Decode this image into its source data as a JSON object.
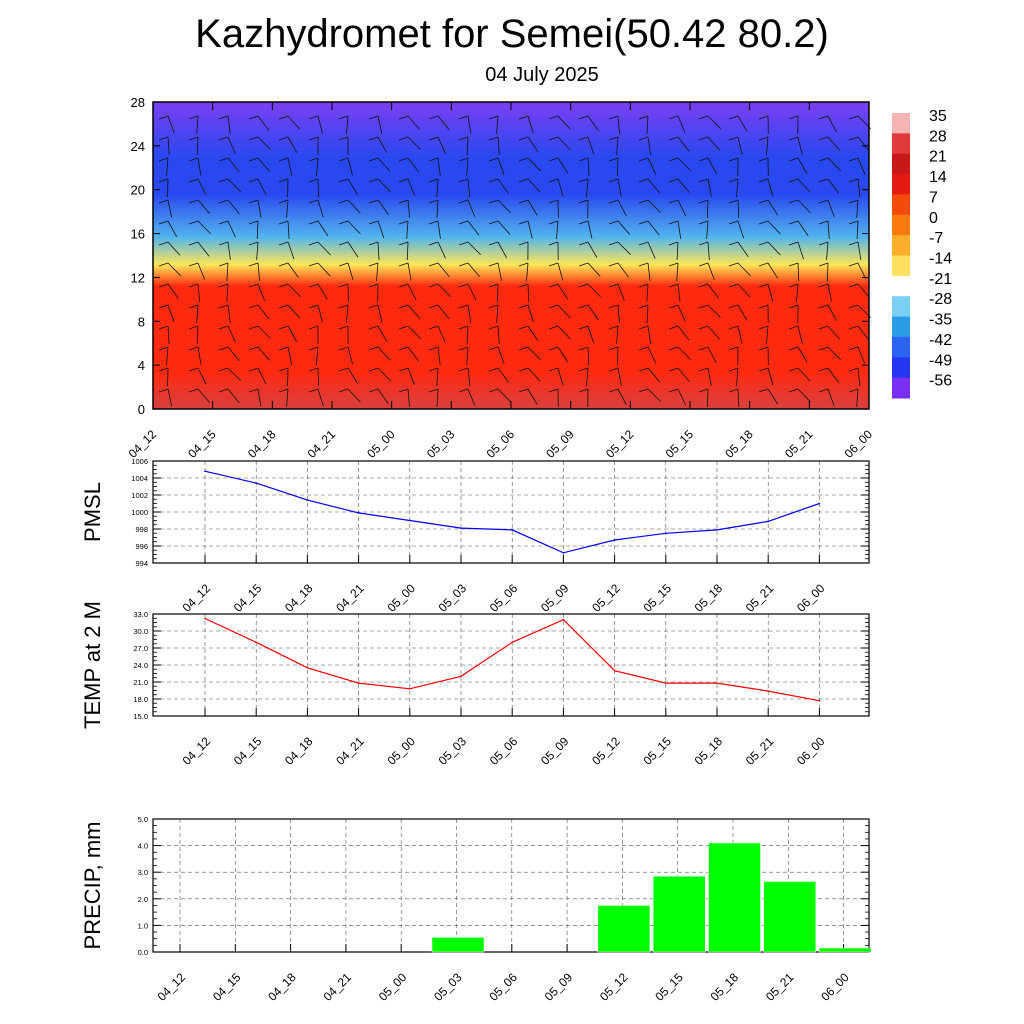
{
  "title": "Kazhydromet for Semei(50.42 80.2)",
  "subtitle": "04 July 2025",
  "colorbar": {
    "labels": [
      "35",
      "28",
      "21",
      "14",
      "7",
      "0",
      "-7",
      "-14",
      "-21",
      "-28",
      "-35",
      "-42",
      "-49",
      "-56"
    ],
    "colors": [
      "#f4b4b4",
      "#e03a3a",
      "#c81818",
      "#e21a10",
      "#f24a08",
      "#fa7a10",
      "#fcae2a",
      "#fee060",
      "#ffffff",
      "#7ad0f4",
      "#2a9ce8",
      "#2a64f0",
      "#2436f0",
      "#7a2ef4"
    ]
  },
  "chart_data": [
    {
      "type": "heatmap",
      "title": "",
      "x": [
        "04_12",
        "04_15",
        "04_18",
        "04_21",
        "05_00",
        "05_03",
        "05_06",
        "05_09",
        "05_12",
        "05_15",
        "05_18",
        "05_21",
        "06_00"
      ],
      "ylim": [
        0,
        28
      ],
      "yticks": [
        "0",
        "4",
        "8",
        "12",
        "16",
        "20",
        "24",
        "28"
      ],
      "colors": {
        "surface": "#d84040",
        "warm": "#ff2a10",
        "freezing": "#ffe658",
        "cold": "#52b4ee",
        "upper": "#2a48f0",
        "top": "#7a40f4"
      }
    },
    {
      "type": "line",
      "ylabel": "PMSL",
      "x": [
        "04_12",
        "04_15",
        "04_18",
        "04_21",
        "05_00",
        "05_03",
        "05_06",
        "05_09",
        "05_12",
        "05_15",
        "05_18",
        "05_21",
        "06_00"
      ],
      "values": [
        1004.8,
        1003.4,
        1001.4,
        999.9,
        999.0,
        998.1,
        997.9,
        995.2,
        996.7,
        997.5,
        997.9,
        998.9,
        1001.0
      ],
      "ylim": [
        994,
        1006
      ],
      "yticks": [
        "994",
        "996",
        "998",
        "1000",
        "1002",
        "1004",
        "1006"
      ],
      "color": "#0000ff"
    },
    {
      "type": "line",
      "ylabel": "TEMP at 2 M",
      "x": [
        "04_12",
        "04_15",
        "04_18",
        "04_21",
        "05_00",
        "05_03",
        "05_06",
        "05_09",
        "05_12",
        "05_15",
        "05_18",
        "05_21",
        "06_00"
      ],
      "values": [
        32.2,
        28.0,
        23.5,
        20.8,
        19.8,
        22.0,
        28.0,
        32.0,
        23.0,
        20.8,
        20.8,
        19.4,
        17.7
      ],
      "ylim": [
        15,
        33
      ],
      "yticks": [
        "15.0",
        "18.0",
        "21.0",
        "24.0",
        "27.0",
        "30.0",
        "33.0"
      ],
      "color": "#ff0000"
    },
    {
      "type": "bar",
      "ylabel": "PRECIP, mm",
      "categories": [
        "04_12",
        "04_15",
        "04_18",
        "04_21",
        "05_00",
        "05_03",
        "05_06",
        "05_09",
        "05_12",
        "05_15",
        "05_18",
        "05_21",
        "06_00"
      ],
      "values": [
        0,
        0,
        0,
        0,
        0,
        0.55,
        0,
        0,
        1.75,
        2.85,
        4.1,
        2.65,
        0.15
      ],
      "ylim": [
        0,
        5
      ],
      "yticks": [
        "0.0",
        "1.0",
        "2.0",
        "3.0",
        "4.0",
        "5.0"
      ],
      "color": "#00ff00"
    }
  ]
}
